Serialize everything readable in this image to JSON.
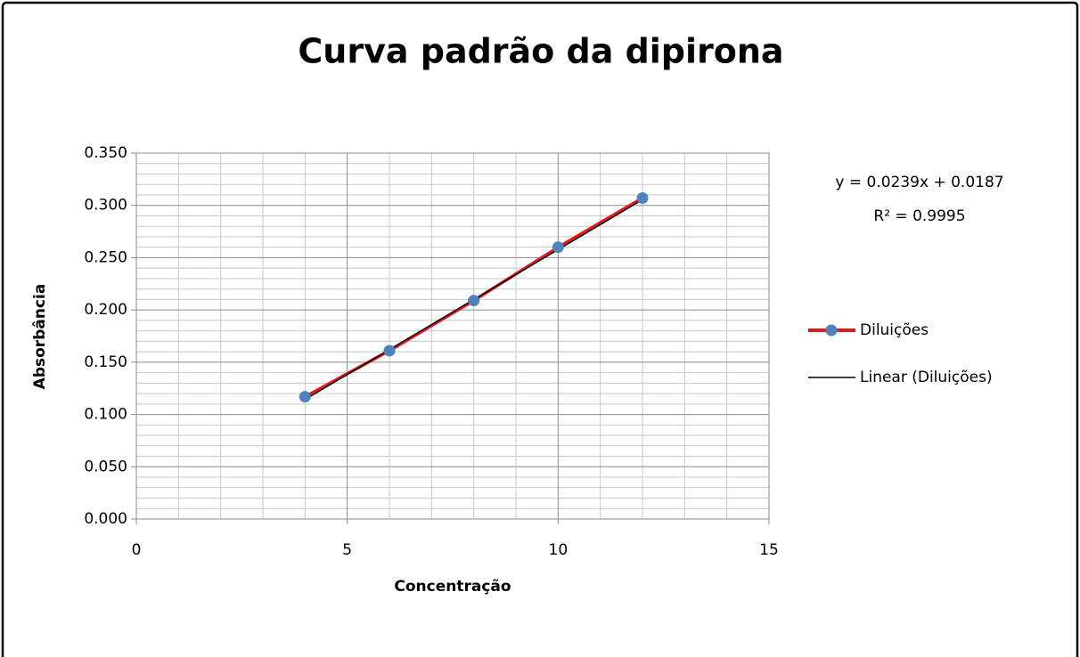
{
  "chart_data": {
    "type": "scatter",
    "title": "Curva padrão da dipirona",
    "x_label": "Concentração",
    "y_label": "Absorbância",
    "x": [
      4,
      6,
      8,
      10,
      12
    ],
    "series": [
      {
        "name": "Diluições",
        "color": "#e31a1c",
        "marker_color": "#4f81bd",
        "values": [
          0.117,
          0.161,
          0.209,
          0.26,
          0.307
        ]
      }
    ],
    "trendline": {
      "name": "Linear (Diluições)",
      "color": "#000000",
      "slope": 0.0239,
      "intercept": 0.0187,
      "equation": "y = 0.0239x + 0.0187",
      "r_squared": "R² = 0.9995"
    },
    "xlim": [
      0,
      15
    ],
    "xticks": [
      0,
      5,
      10,
      15
    ],
    "ylim": [
      0,
      0.35
    ],
    "yticks": [
      {
        "value": 0,
        "label": "0.000"
      },
      {
        "value": 0.05,
        "label": "0.050"
      },
      {
        "value": 0.1,
        "label": "0.100"
      },
      {
        "value": 0.15,
        "label": "0.150"
      },
      {
        "value": 0.2,
        "label": "0.200"
      },
      {
        "value": 0.25,
        "label": "0.250"
      },
      {
        "value": 0.3,
        "label": "0.300"
      },
      {
        "value": 0.35,
        "label": "0.350"
      }
    ],
    "grid": true,
    "minor_grid": true,
    "legend": "right"
  }
}
